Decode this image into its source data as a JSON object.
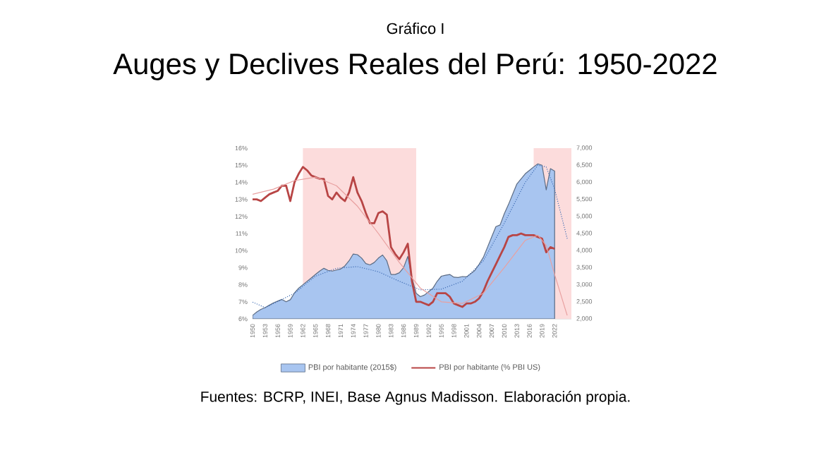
{
  "chart_data": {
    "type": "line",
    "title": "Gráfico I",
    "subtitle": "Auges y Declives Reales del Perú: 1950-2022",
    "annotations": [
      "Fuentes: BCRP, INEI, Base Agnus Madisson. Elaboración propia."
    ],
    "x": [
      1950,
      1951,
      1952,
      1953,
      1954,
      1955,
      1956,
      1957,
      1958,
      1959,
      1960,
      1961,
      1962,
      1963,
      1964,
      1965,
      1966,
      1967,
      1968,
      1969,
      1970,
      1971,
      1972,
      1973,
      1974,
      1975,
      1976,
      1977,
      1978,
      1979,
      1980,
      1981,
      1982,
      1983,
      1984,
      1985,
      1986,
      1987,
      1988,
      1989,
      1990,
      1991,
      1992,
      1993,
      1994,
      1995,
      1996,
      1997,
      1998,
      1999,
      2000,
      2001,
      2002,
      2003,
      2004,
      2005,
      2006,
      2007,
      2008,
      2009,
      2010,
      2011,
      2012,
      2013,
      2014,
      2015,
      2016,
      2017,
      2018,
      2019,
      2020,
      2021,
      2022
    ],
    "series": [
      {
        "name": "PBI por habitante (2015$)",
        "type": "area",
        "axis": "y2",
        "color": "#a8c5f0",
        "values": [
          2100,
          2200,
          2280,
          2330,
          2400,
          2470,
          2520,
          2570,
          2500,
          2560,
          2760,
          2900,
          3000,
          3100,
          3200,
          3300,
          3400,
          3480,
          3420,
          3400,
          3430,
          3460,
          3550,
          3700,
          3900,
          3880,
          3780,
          3620,
          3580,
          3650,
          3780,
          3870,
          3700,
          3300,
          3300,
          3350,
          3500,
          3830,
          3200,
          2750,
          2650,
          2700,
          2800,
          2900,
          3100,
          3250,
          3280,
          3300,
          3220,
          3210,
          3240,
          3230,
          3320,
          3420,
          3600,
          3800,
          4100,
          4400,
          4700,
          4750,
          5080,
          5350,
          5650,
          5950,
          6100,
          6250,
          6350,
          6450,
          6540,
          6500,
          5780,
          6400,
          6330
        ]
      },
      {
        "name": "PBI por habitante (% PBI US)",
        "color": "#b84545",
        "values": [
          13.0,
          13.0,
          12.9,
          13.1,
          13.3,
          13.4,
          13.5,
          13.8,
          13.8,
          12.9,
          14.0,
          14.5,
          14.9,
          14.7,
          14.4,
          14.3,
          14.2,
          14.2,
          13.2,
          13.0,
          13.4,
          13.1,
          12.9,
          13.4,
          14.3,
          13.4,
          12.9,
          12.2,
          11.6,
          11.6,
          12.2,
          12.3,
          12.1,
          10.2,
          9.8,
          9.5,
          9.9,
          10.4,
          8.2,
          7.0,
          7.0,
          6.9,
          6.8,
          7.0,
          7.5,
          7.5,
          7.5,
          7.3,
          6.9,
          6.8,
          6.7,
          6.9,
          6.9,
          7.0,
          7.2,
          7.6,
          8.2,
          8.7,
          9.2,
          9.7,
          10.2,
          10.8,
          10.9,
          10.9,
          11.0,
          10.9,
          10.9,
          10.9,
          10.8,
          10.7,
          9.9,
          10.2,
          10.1
        ]
      },
      {
        "type": "line",
        "axis": "y2",
        "color": "#3d6bb3",
        "line_style": "dotted",
        "x": [
          1950,
          1953,
          1960,
          1965,
          1970,
          1975,
          1980,
          1985,
          1990,
          1995,
          2000,
          2005,
          2010,
          2015,
          2018,
          2020,
          2022,
          2025
        ],
        "values": [
          2490,
          2330,
          2750,
          3250,
          3480,
          3530,
          3380,
          3100,
          2850,
          2870,
          3100,
          3700,
          4800,
          6000,
          6500,
          6450,
          5800,
          4350
        ]
      },
      {
        "type": "line",
        "color": "#e8a0a0",
        "line_style": "solid",
        "x": [
          1950,
          1955,
          1960,
          1965,
          1970,
          1975,
          1980,
          1985,
          1990,
          1995,
          2000,
          2005,
          2010,
          2015,
          2018,
          2020,
          2022,
          2025
        ],
        "values": [
          13.3,
          13.6,
          14.1,
          14.3,
          13.8,
          12.6,
          11.0,
          9.3,
          7.8,
          7.0,
          6.9,
          7.5,
          9.0,
          10.6,
          10.9,
          10.3,
          8.6,
          6.2
        ]
      }
    ],
    "xlim": [
      1950,
      2026
    ],
    "xticks": [
      1950,
      1953,
      1956,
      1959,
      1962,
      1965,
      1968,
      1971,
      1974,
      1977,
      1980,
      1983,
      1986,
      1989,
      1992,
      1995,
      1998,
      2001,
      2004,
      2007,
      2010,
      2013,
      2016,
      2019,
      2022
    ],
    "ylim": [
      6,
      16
    ],
    "yticks": [
      {
        "value": 6,
        "label": "6%"
      },
      {
        "value": 7,
        "label": "7%"
      },
      {
        "value": 8,
        "label": "8%"
      },
      {
        "value": 9,
        "label": "9%"
      },
      {
        "value": 10,
        "label": "10%"
      },
      {
        "value": 11,
        "label": "11%"
      },
      {
        "value": 12,
        "label": "12%"
      },
      {
        "value": 13,
        "label": "13%"
      },
      {
        "value": 14,
        "label": "14%"
      },
      {
        "value": 15,
        "label": "15%"
      },
      {
        "value": 16,
        "label": "16%"
      }
    ],
    "y2lim": [
      2000,
      7000
    ],
    "y2ticks": [
      {
        "value": 2000,
        "label": "2,000"
      },
      {
        "value": 2500,
        "label": "2,500"
      },
      {
        "value": 3000,
        "label": "3,000"
      },
      {
        "value": 3500,
        "label": "3,500"
      },
      {
        "value": 4000,
        "label": "4,000"
      },
      {
        "value": 4500,
        "label": "4,500"
      },
      {
        "value": 5000,
        "label": "5,000"
      },
      {
        "value": 5500,
        "label": "5,500"
      },
      {
        "value": 6000,
        "label": "6,000"
      },
      {
        "value": 6500,
        "label": "6,500"
      },
      {
        "value": 7000,
        "label": "7,000"
      }
    ],
    "bands": [
      {
        "axis": "x",
        "from": 1962,
        "to": 1989,
        "color": "#fcdcdc"
      },
      {
        "axis": "x",
        "from": 2017,
        "to": 2026,
        "color": "#fcdcdc"
      }
    ],
    "legend": "bottom"
  }
}
